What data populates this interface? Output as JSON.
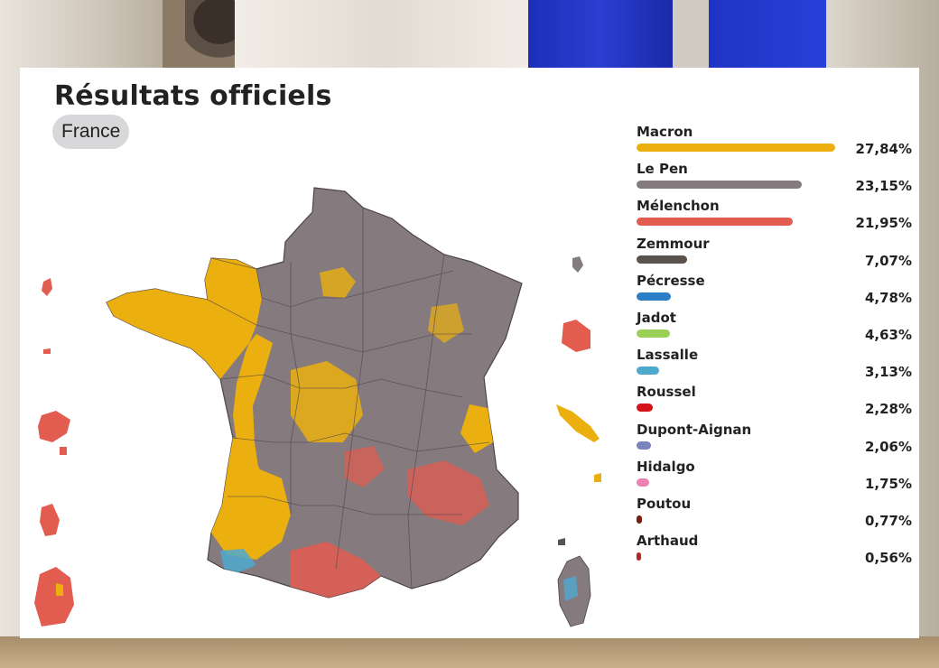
{
  "header": {
    "title": "Résultats officiels",
    "scope_button": "France"
  },
  "colors": {
    "Macron": "#ebb00f",
    "Le Pen": "#857a7e",
    "Mélenchon": "#e25c50",
    "Zemmour": "#5a524d",
    "Pécresse": "#2a7fc6",
    "Jadot": "#9bd057",
    "Lassalle": "#4ea9cf",
    "Roussel": "#d3121a",
    "Dupont-Aignan": "#7b82c0",
    "Hidalgo": "#ec82b4",
    "Poutou": "#7b1c10",
    "Arthaud": "#b22a1e"
  },
  "chart_data": {
    "type": "bar",
    "title": "Résultats officiels",
    "subtitle": "France",
    "categories": [
      "Macron",
      "Le Pen",
      "Mélenchon",
      "Zemmour",
      "Pécresse",
      "Jadot",
      "Lassalle",
      "Roussel",
      "Dupont-Aignan",
      "Hidalgo",
      "Poutou",
      "Arthaud"
    ],
    "values": [
      27.84,
      23.15,
      21.95,
      7.07,
      4.78,
      4.63,
      3.13,
      2.28,
      2.06,
      1.75,
      0.77,
      0.56
    ],
    "value_labels": [
      "27,84%",
      "23,15%",
      "21,95%",
      "7,07%",
      "4,78%",
      "4,63%",
      "3,13%",
      "2,28%",
      "2,06%",
      "1,75%",
      "0,77%",
      "0,56%"
    ],
    "xlabel": "",
    "ylabel": "",
    "orientation": "horizontal",
    "legend": "right"
  }
}
